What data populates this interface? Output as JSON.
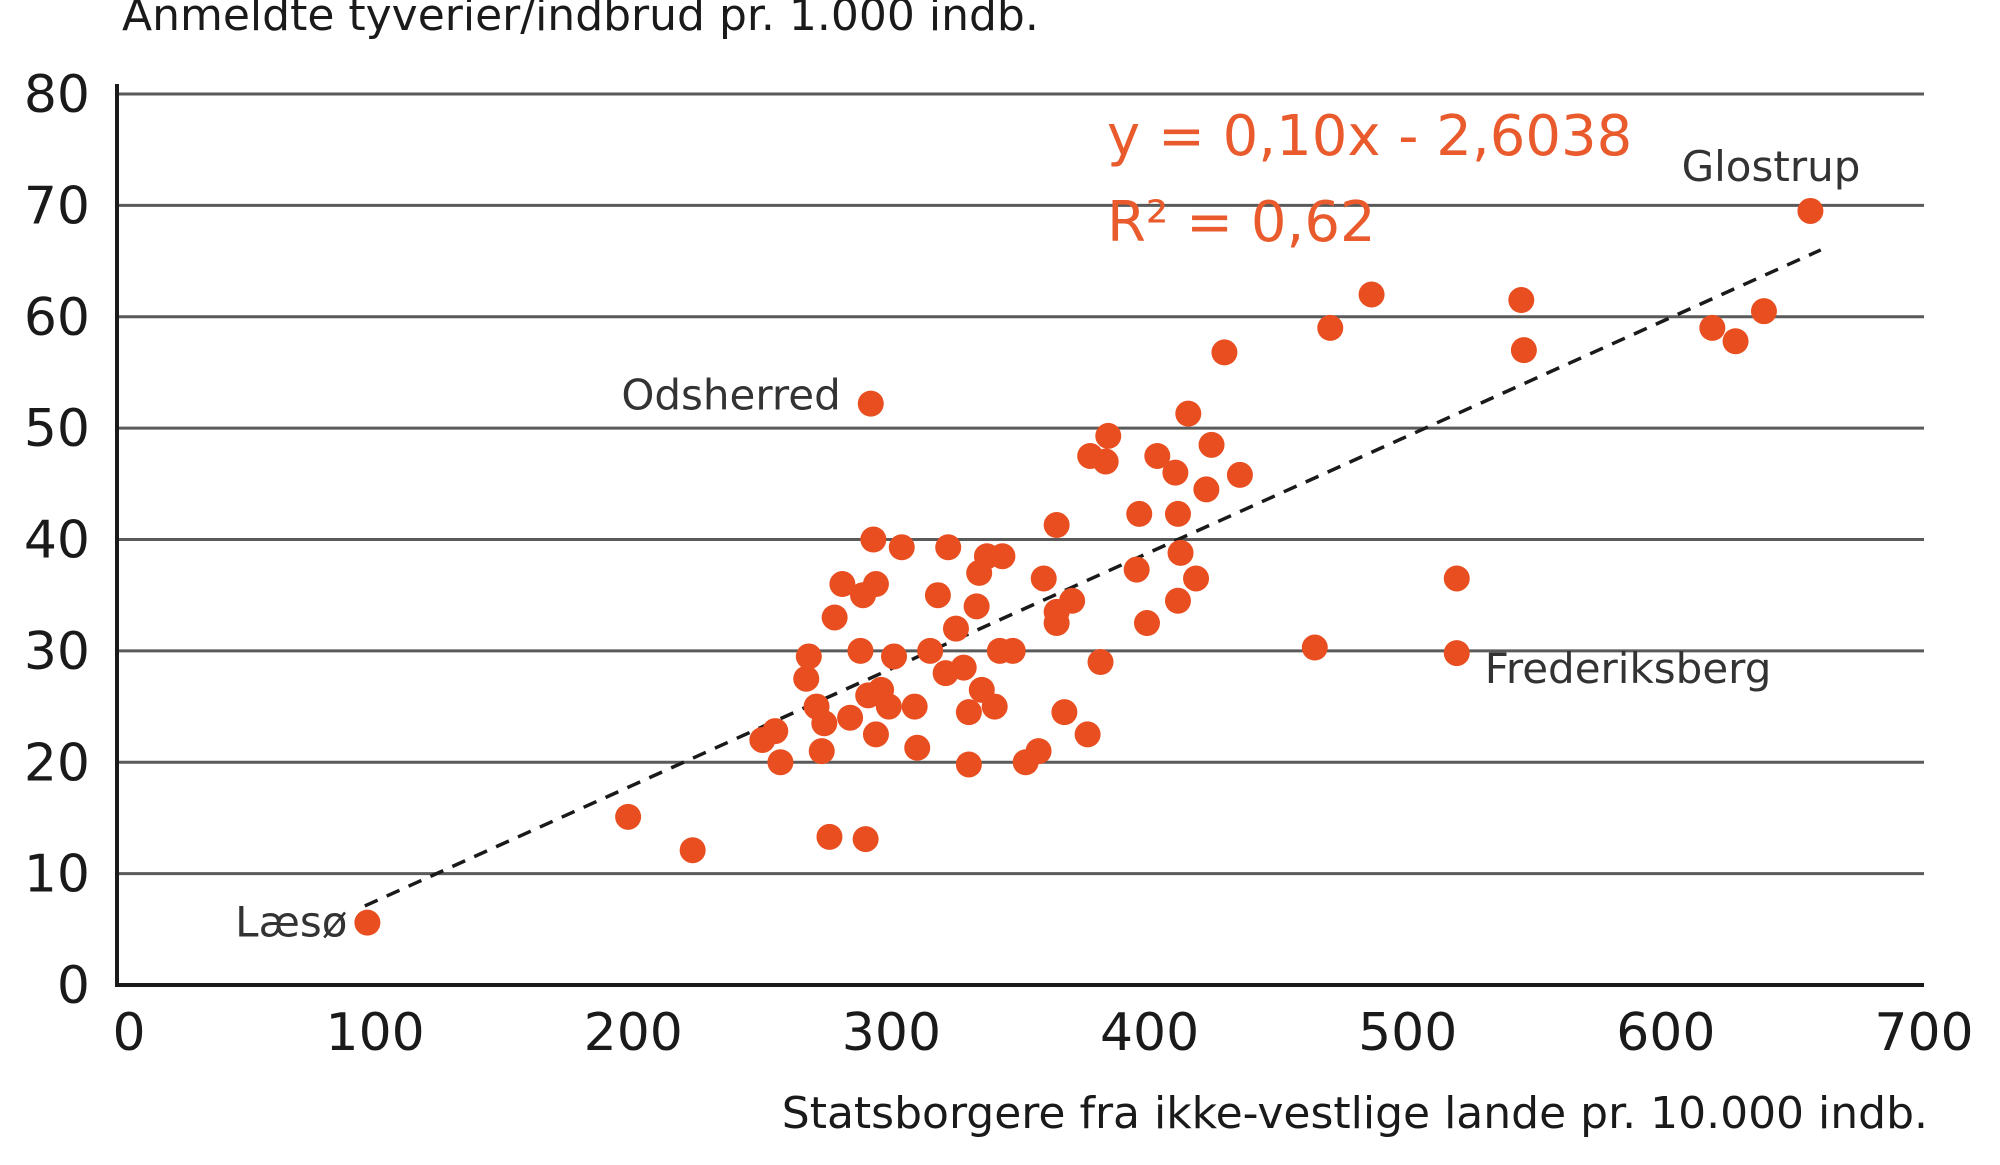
{
  "chart_data": {
    "type": "scatter",
    "ylabel": "Anmeldte tyverier/indbrud pr. 1.000 indb.",
    "xlabel": "Statsborgere fra ikke-vestlige lande pr. 10.000 indb.",
    "xlim": [
      0,
      700
    ],
    "ylim": [
      0,
      80
    ],
    "x_ticks": [
      "0",
      "100",
      "200",
      "300",
      "400",
      "500",
      "600",
      "700"
    ],
    "y_ticks": [
      "0",
      "10",
      "20",
      "30",
      "40",
      "50",
      "60",
      "70",
      "80"
    ],
    "grid": "horizontal",
    "equation_line1": "y = 0,10x - 2,6038",
    "equation_line2": "R² = 0,62",
    "colors": {
      "points": "#e84e1f",
      "equation": "#e95a2c",
      "trendline": "#1a1a1a",
      "grid": "#5a5a5a"
    },
    "trendline": {
      "x": [
        96,
        660
      ],
      "y": [
        7.1,
        66.0
      ]
    },
    "labels": [
      {
        "text": "Læsø",
        "x": 97,
        "y": 5.6
      },
      {
        "text": "Odsherred",
        "x": 292,
        "y": 52.2
      },
      {
        "text": "Glostrup",
        "x": 656,
        "y": 69.5
      },
      {
        "text": "Frederiksberg",
        "x": 519,
        "y": 29.8
      }
    ],
    "points": [
      [
        97,
        5.6
      ],
      [
        198,
        15.1
      ],
      [
        223,
        12.1
      ],
      [
        250,
        22.0
      ],
      [
        255,
        22.8
      ],
      [
        257,
        20.0
      ],
      [
        267,
        27.5
      ],
      [
        268,
        29.5
      ],
      [
        271,
        25.0
      ],
      [
        273,
        21.0
      ],
      [
        274,
        23.5
      ],
      [
        276,
        13.3
      ],
      [
        278,
        33.0
      ],
      [
        281,
        36.0
      ],
      [
        284,
        24.0
      ],
      [
        288,
        30.0
      ],
      [
        289,
        35.0
      ],
      [
        290,
        13.1
      ],
      [
        291,
        26.0
      ],
      [
        292,
        52.2
      ],
      [
        293,
        40.0
      ],
      [
        294,
        36.0
      ],
      [
        294,
        22.5
      ],
      [
        296,
        26.5
      ],
      [
        299,
        25.0
      ],
      [
        301,
        29.5
      ],
      [
        304,
        39.3
      ],
      [
        309,
        25.0
      ],
      [
        310,
        21.3
      ],
      [
        315,
        30.0
      ],
      [
        318,
        35.0
      ],
      [
        321,
        28.0
      ],
      [
        322,
        39.3
      ],
      [
        325,
        32.0
      ],
      [
        328,
        28.5
      ],
      [
        330,
        24.5
      ],
      [
        330,
        19.8
      ],
      [
        333,
        34.0
      ],
      [
        334,
        37.0
      ],
      [
        335,
        26.5
      ],
      [
        337,
        38.5
      ],
      [
        340,
        25.0
      ],
      [
        342,
        30.0
      ],
      [
        343,
        38.5
      ],
      [
        347,
        30.0
      ],
      [
        352,
        20.0
      ],
      [
        357,
        21.0
      ],
      [
        359,
        36.5
      ],
      [
        364,
        41.3
      ],
      [
        364,
        33.5
      ],
      [
        364,
        32.5
      ],
      [
        367,
        24.5
      ],
      [
        370,
        34.5
      ],
      [
        376,
        22.5
      ],
      [
        377,
        47.5
      ],
      [
        381,
        29.0
      ],
      [
        383,
        47.0
      ],
      [
        384,
        49.3
      ],
      [
        395,
        37.3
      ],
      [
        396,
        42.3
      ],
      [
        399,
        32.5
      ],
      [
        403,
        47.5
      ],
      [
        410,
        46.0
      ],
      [
        411,
        42.3
      ],
      [
        411,
        34.5
      ],
      [
        412,
        38.8
      ],
      [
        415,
        51.3
      ],
      [
        418,
        36.5
      ],
      [
        422,
        44.5
      ],
      [
        424,
        48.5
      ],
      [
        429,
        56.8
      ],
      [
        435,
        45.8
      ],
      [
        464,
        30.3
      ],
      [
        470,
        59.0
      ],
      [
        486,
        62.0
      ],
      [
        519,
        36.5
      ],
      [
        519,
        29.8
      ],
      [
        544,
        61.5
      ],
      [
        545,
        57.0
      ],
      [
        618,
        59.0
      ],
      [
        627,
        57.8
      ],
      [
        638,
        60.5
      ],
      [
        656,
        69.5
      ]
    ]
  }
}
